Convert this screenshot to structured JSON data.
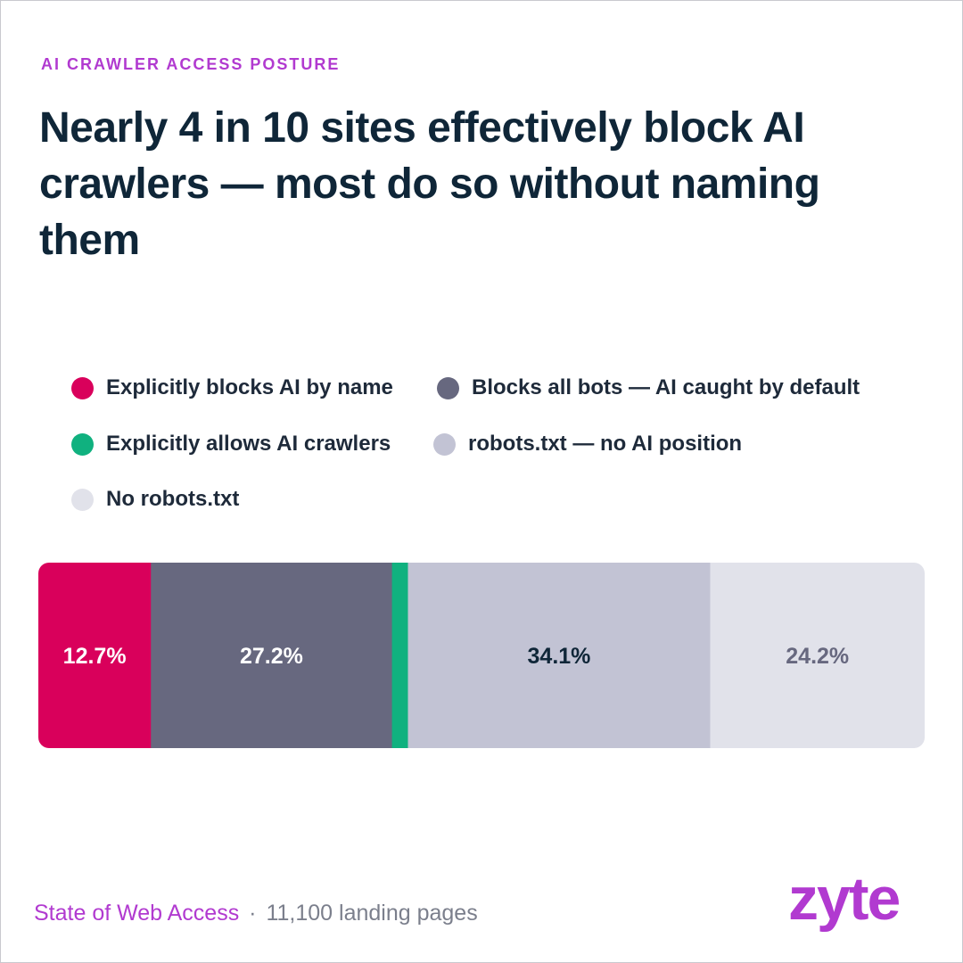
{
  "eyebrow": "AI CRAWLER ACCESS POSTURE",
  "title": "Nearly 4 in 10 sites effectively block AI crawlers — most do so without naming them",
  "footer": {
    "source": "State of Web Access",
    "separator": "·",
    "count": "11,100 landing pages"
  },
  "logo": "zyte",
  "colors": {
    "accent": "#b13ad0",
    "blocks_by_name": "#d9005b",
    "blocks_all_bots": "#67687f",
    "allows_ai": "#10b17f",
    "no_ai_position": "#c2c3d4",
    "no_robots": "#e1e2ea"
  },
  "legend": [
    {
      "label": "Explicitly blocks AI by name",
      "color": "#d9005b"
    },
    {
      "label": "Blocks all bots — AI caught by default",
      "color": "#67687f"
    },
    {
      "label": "Explicitly allows AI crawlers",
      "color": "#10b17f"
    },
    {
      "label": "robots.txt — no AI position",
      "color": "#c2c3d4"
    },
    {
      "label": "No robots.txt",
      "color": "#e1e2ea"
    }
  ],
  "chart_data": {
    "type": "bar",
    "orientation": "horizontal-stacked-100",
    "unit": "%",
    "series": [
      {
        "name": "Explicitly blocks AI by name",
        "value": 12.7,
        "label": "12.7%",
        "color": "#d9005b",
        "label_color": "#ffffff"
      },
      {
        "name": "Blocks all bots — AI caught by default",
        "value": 27.2,
        "label": "27.2%",
        "color": "#67687f",
        "label_color": "#ffffff"
      },
      {
        "name": "Explicitly allows AI crawlers",
        "value": 1.8,
        "label": "",
        "color": "#10b17f",
        "label_color": "#ffffff"
      },
      {
        "name": "robots.txt — no AI position",
        "value": 34.1,
        "label": "34.1%",
        "color": "#c2c3d4",
        "label_color": "#0f2638"
      },
      {
        "name": "No robots.txt",
        "value": 24.2,
        "label": "24.2%",
        "color": "#e1e2ea",
        "label_color": "#67687f"
      }
    ],
    "legend_position": "top",
    "grid": false
  }
}
